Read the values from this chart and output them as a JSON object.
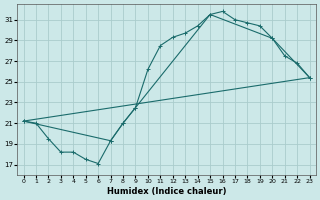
{
  "xlabel": "Humidex (Indice chaleur)",
  "xlim": [
    -0.5,
    23.5
  ],
  "ylim": [
    16,
    32.5
  ],
  "yticks": [
    17,
    19,
    21,
    23,
    25,
    27,
    29,
    31
  ],
  "xticks": [
    0,
    1,
    2,
    3,
    4,
    5,
    6,
    7,
    8,
    9,
    10,
    11,
    12,
    13,
    14,
    15,
    16,
    17,
    18,
    19,
    20,
    21,
    22,
    23
  ],
  "bg_color": "#cce8e8",
  "grid_color": "#aacccc",
  "line_color": "#1a6b6b",
  "line1_x": [
    0,
    1,
    2,
    3,
    4,
    5,
    6,
    7,
    8,
    9,
    10,
    11,
    12,
    13,
    14,
    15,
    16,
    17,
    18,
    19,
    20,
    21,
    22,
    23
  ],
  "line1_y": [
    21.2,
    21.0,
    19.5,
    18.2,
    18.2,
    17.5,
    17.1,
    19.3,
    21.0,
    22.5,
    26.2,
    28.5,
    29.3,
    29.7,
    30.4,
    31.5,
    31.8,
    31.0,
    30.7,
    30.4,
    29.2,
    27.5,
    26.8,
    25.4
  ],
  "line3_x": [
    0,
    7,
    8,
    9,
    15,
    20,
    23
  ],
  "line3_y": [
    21.2,
    19.3,
    21.0,
    22.5,
    31.5,
    29.2,
    25.4
  ],
  "line4_x": [
    0,
    23
  ],
  "line4_y": [
    21.2,
    25.4
  ]
}
